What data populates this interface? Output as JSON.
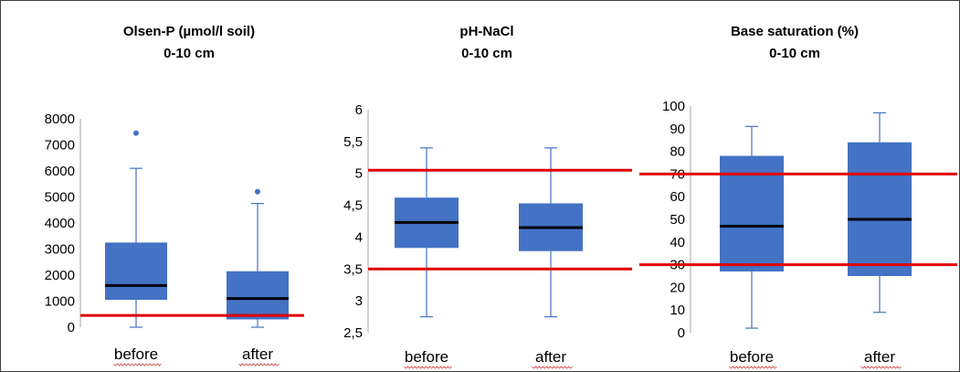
{
  "chart_data": [
    {
      "type": "box",
      "title": "Olsen-P (µmol/l soil)",
      "subtitle": "0-10 cm",
      "ylim": [
        0,
        8000
      ],
      "yticks": [
        "0",
        "1000",
        "2000",
        "3000",
        "4000",
        "5000",
        "6000",
        "7000",
        "8000"
      ],
      "categories": [
        "before",
        "after"
      ],
      "boxes": [
        {
          "category": "before",
          "min": 0,
          "q1": 1050,
          "median": 1600,
          "q3": 3250,
          "max": 6100,
          "outliers": [
            7450
          ]
        },
        {
          "category": "after",
          "min": 0,
          "q1": 300,
          "median": 1100,
          "q3": 2150,
          "max": 4750,
          "outliers": [
            5200
          ]
        }
      ],
      "reference_lines": [
        450
      ],
      "colors": {
        "box": "#4472c4",
        "median": "#000000",
        "whisker": "#4472c4",
        "reference": "#e00000"
      }
    },
    {
      "type": "box",
      "title": "pH-NaCl",
      "subtitle": "0-10 cm",
      "ylim": [
        2.5,
        6
      ],
      "yticks": [
        "2,5",
        "3",
        "3,5",
        "4",
        "4,5",
        "5",
        "5,5",
        "6"
      ],
      "categories": [
        "before",
        "after"
      ],
      "boxes": [
        {
          "category": "before",
          "min": 2.75,
          "q1": 3.83,
          "median": 4.23,
          "q3": 4.62,
          "max": 5.4,
          "outliers": []
        },
        {
          "category": "after",
          "min": 2.75,
          "q1": 3.78,
          "median": 4.15,
          "q3": 4.53,
          "max": 5.4,
          "outliers": []
        }
      ],
      "reference_lines": [
        3.5,
        5.05
      ],
      "colors": {
        "box": "#4472c4",
        "median": "#000000",
        "whisker": "#4472c4",
        "reference": "#e00000"
      }
    },
    {
      "type": "box",
      "title": "Base saturation (%)",
      "subtitle": "0-10 cm",
      "ylim": [
        0,
        100
      ],
      "yticks": [
        "0",
        "10",
        "20",
        "30",
        "40",
        "50",
        "60",
        "70",
        "80",
        "90",
        "100"
      ],
      "categories": [
        "before",
        "after"
      ],
      "boxes": [
        {
          "category": "before",
          "min": 2,
          "q1": 27,
          "median": 47,
          "q3": 78,
          "max": 91,
          "outliers": []
        },
        {
          "category": "after",
          "min": 9,
          "q1": 25,
          "median": 50,
          "q3": 84,
          "max": 97,
          "outliers": []
        }
      ],
      "reference_lines": [
        30,
        70
      ],
      "colors": {
        "box": "#4472c4",
        "median": "#000000",
        "whisker": "#4472c4",
        "reference": "#e00000"
      }
    }
  ]
}
